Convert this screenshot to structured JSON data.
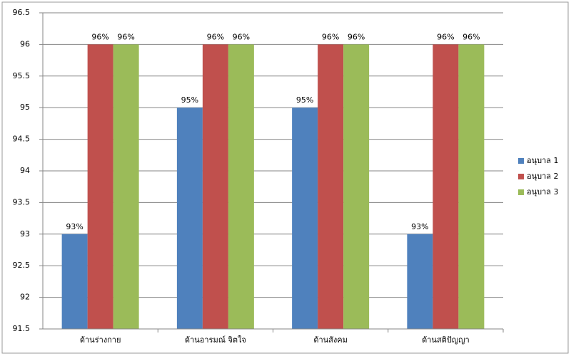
{
  "chart_data": {
    "type": "bar",
    "categories": [
      "ด้านร่างกาย",
      "ด้านอารมณ์ จิตใจ",
      "ด้านสังคม",
      "ด้านสติปัญญา"
    ],
    "series": [
      {
        "name": "อนุบาล 1",
        "color": "#4f81bd",
        "values": [
          93,
          95,
          95,
          93
        ],
        "value_labels": [
          "93%",
          "95%",
          "95%",
          "93%"
        ]
      },
      {
        "name": "อนุบาล 2",
        "color": "#c0504d",
        "values": [
          96,
          96,
          96,
          96
        ],
        "value_labels": [
          "96%",
          "96%",
          "96%",
          "96%"
        ]
      },
      {
        "name": "อนุบาล 3",
        "color": "#9bbb59",
        "values": [
          96,
          96,
          96,
          96
        ],
        "value_labels": [
          "96%",
          "96%",
          "96%",
          "96%"
        ]
      }
    ],
    "ylim": [
      91.5,
      96.5
    ],
    "yticks": [
      91.5,
      92,
      92.5,
      93,
      93.5,
      94,
      94.5,
      95,
      95.5,
      96,
      96.5
    ],
    "grid": true,
    "legend": "right"
  }
}
